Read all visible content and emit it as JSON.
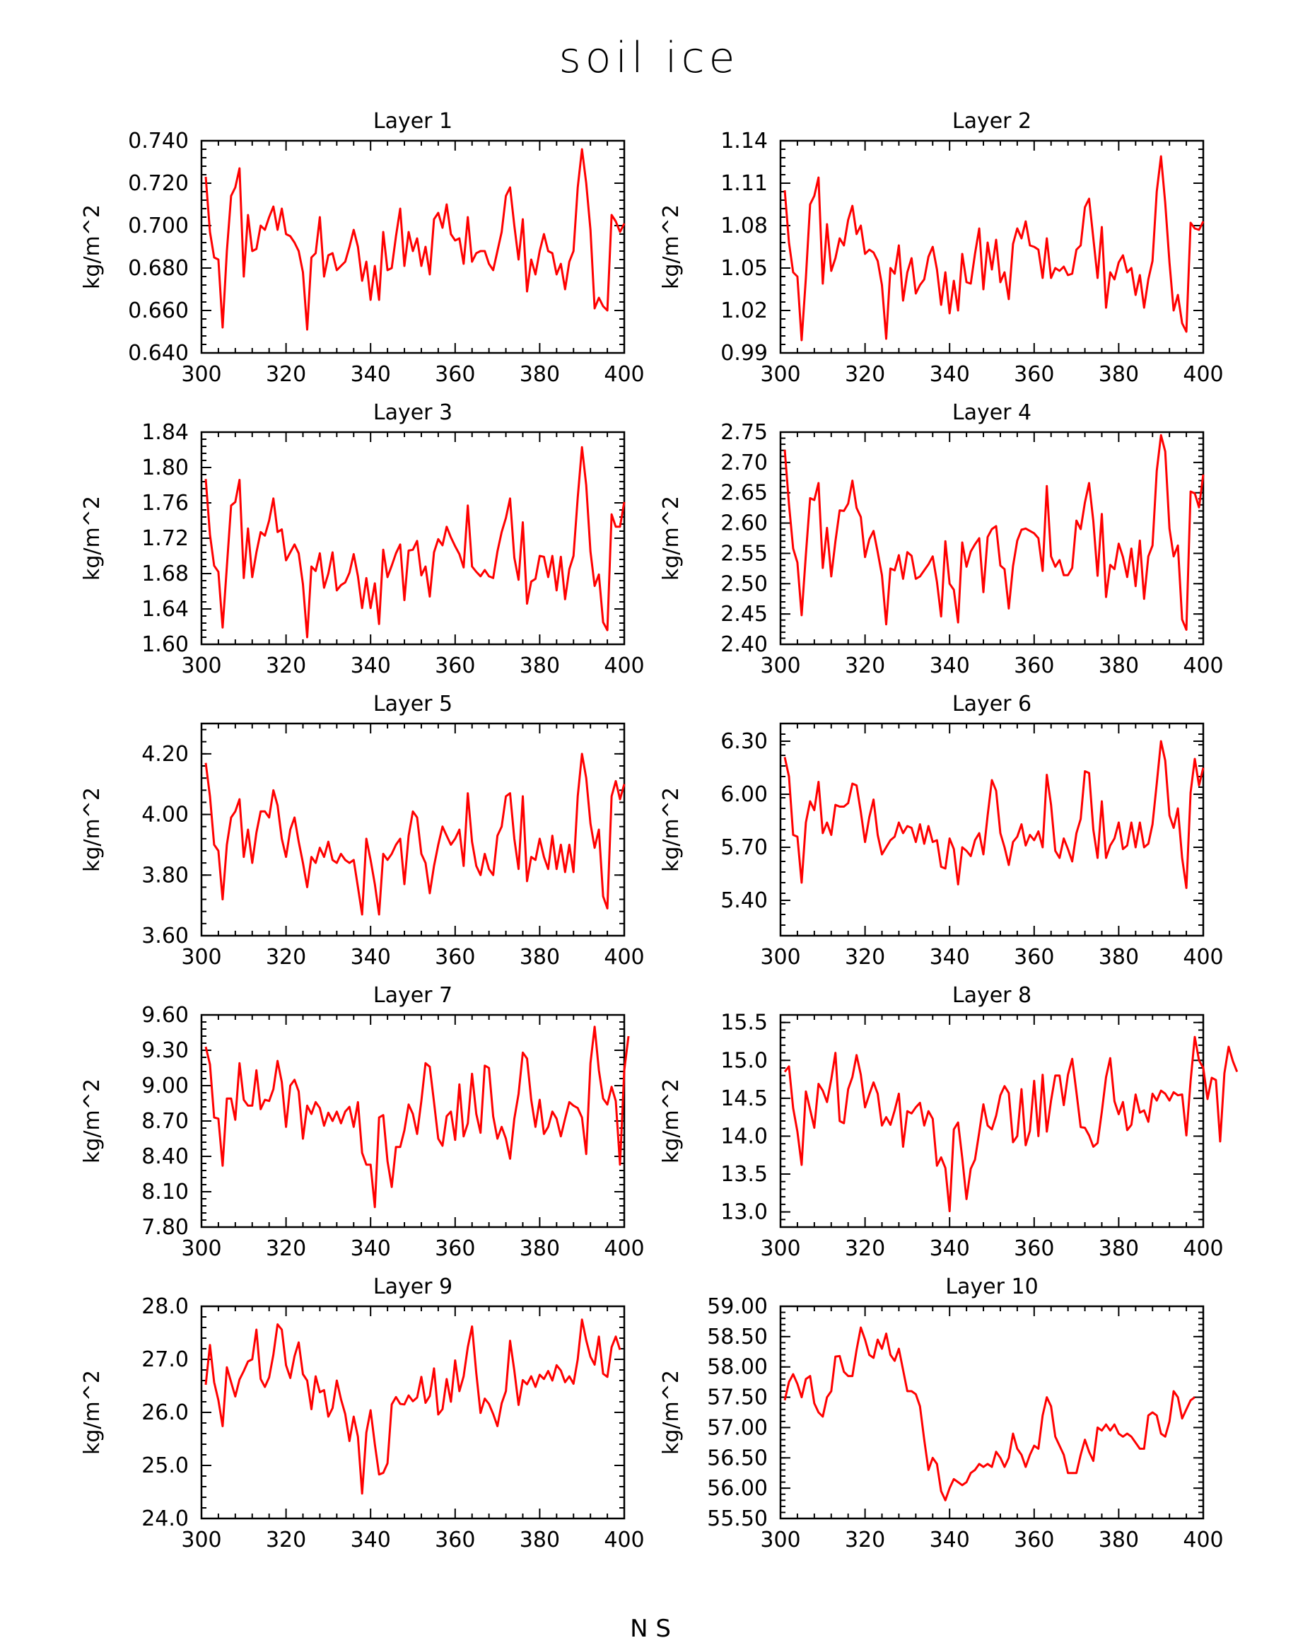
{
  "figure": {
    "title": "soil ice",
    "footer_text": "N  S",
    "line_color": "#ff0000",
    "axis_color": "#000000"
  },
  "chart_data": [
    {
      "type": "line",
      "title": "Layer 1",
      "xlabel": "",
      "ylabel": "kg/m^2",
      "xlim": [
        300,
        400
      ],
      "ylim": [
        0.64,
        0.74
      ],
      "xticks": [
        "300",
        "320",
        "340",
        "360",
        "380",
        "400"
      ],
      "yticks": [
        "0.640",
        "0.660",
        "0.680",
        "0.700",
        "0.720",
        "0.740"
      ],
      "x_start": 301,
      "x_step": 1,
      "values": [
        0.723,
        0.697,
        0.685,
        0.684,
        0.652,
        0.688,
        0.714,
        0.718,
        0.727,
        0.676,
        0.705,
        0.688,
        0.689,
        0.7,
        0.698,
        0.704,
        0.709,
        0.698,
        0.708,
        0.696,
        0.695,
        0.692,
        0.688,
        0.678,
        0.651,
        0.685,
        0.687,
        0.704,
        0.676,
        0.686,
        0.687,
        0.679,
        0.681,
        0.683,
        0.69,
        0.698,
        0.69,
        0.674,
        0.683,
        0.665,
        0.681,
        0.665,
        0.697,
        0.679,
        0.68,
        0.695,
        0.708,
        0.681,
        0.697,
        0.688,
        0.694,
        0.681,
        0.69,
        0.677,
        0.703,
        0.706,
        0.699,
        0.71,
        0.696,
        0.693,
        0.694,
        0.682,
        0.704,
        0.683,
        0.687,
        0.688,
        0.688,
        0.682,
        0.679,
        0.688,
        0.697,
        0.714,
        0.718,
        0.7,
        0.684,
        0.703,
        0.669,
        0.684,
        0.677,
        0.688,
        0.696,
        0.688,
        0.687,
        0.677,
        0.682,
        0.67,
        0.683,
        0.688,
        0.718,
        0.736,
        0.72,
        0.698,
        0.661,
        0.666,
        0.662,
        0.66,
        0.705,
        0.702,
        0.697,
        0.701
      ]
    },
    {
      "type": "line",
      "title": "Layer 2",
      "xlabel": "",
      "ylabel": "kg/m^2",
      "xlim": [
        300,
        400
      ],
      "ylim": [
        0.99,
        1.14
      ],
      "xticks": [
        "300",
        "320",
        "340",
        "360",
        "380",
        "400"
      ],
      "yticks": [
        "0.99",
        "1.02",
        "1.05",
        "1.08",
        "1.11",
        "1.14"
      ],
      "x_start": 301,
      "x_step": 1,
      "values": [
        1.105,
        1.068,
        1.047,
        1.044,
        0.999,
        1.043,
        1.095,
        1.101,
        1.114,
        1.039,
        1.081,
        1.048,
        1.057,
        1.071,
        1.066,
        1.084,
        1.094,
        1.074,
        1.08,
        1.06,
        1.063,
        1.061,
        1.055,
        1.038,
        1.0,
        1.05,
        1.046,
        1.066,
        1.027,
        1.047,
        1.057,
        1.032,
        1.038,
        1.042,
        1.058,
        1.065,
        1.049,
        1.024,
        1.047,
        1.018,
        1.041,
        1.02,
        1.06,
        1.04,
        1.039,
        1.06,
        1.078,
        1.035,
        1.068,
        1.049,
        1.07,
        1.04,
        1.047,
        1.028,
        1.067,
        1.078,
        1.071,
        1.083,
        1.066,
        1.065,
        1.063,
        1.043,
        1.071,
        1.043,
        1.05,
        1.048,
        1.051,
        1.045,
        1.046,
        1.063,
        1.066,
        1.093,
        1.099,
        1.071,
        1.043,
        1.079,
        1.022,
        1.047,
        1.042,
        1.054,
        1.059,
        1.047,
        1.05,
        1.031,
        1.045,
        1.022,
        1.042,
        1.055,
        1.104,
        1.129,
        1.096,
        1.054,
        1.02,
        1.031,
        1.011,
        1.005,
        1.082,
        1.078,
        1.077,
        1.083
      ]
    },
    {
      "type": "line",
      "title": "Layer 3",
      "xlabel": "",
      "ylabel": "kg/m^2",
      "xlim": [
        300,
        400
      ],
      "ylim": [
        1.6,
        1.84
      ],
      "xticks": [
        "300",
        "320",
        "340",
        "360",
        "380",
        "400"
      ],
      "yticks": [
        "1.60",
        "1.64",
        "1.68",
        "1.72",
        "1.76",
        "1.80",
        "1.84"
      ],
      "x_start": 301,
      "x_step": 1,
      "values": [
        1.787,
        1.724,
        1.689,
        1.682,
        1.619,
        1.688,
        1.757,
        1.761,
        1.786,
        1.675,
        1.731,
        1.676,
        1.704,
        1.727,
        1.723,
        1.74,
        1.765,
        1.727,
        1.73,
        1.695,
        1.704,
        1.713,
        1.703,
        1.668,
        1.608,
        1.688,
        1.683,
        1.703,
        1.664,
        1.68,
        1.704,
        1.661,
        1.667,
        1.67,
        1.681,
        1.702,
        1.677,
        1.641,
        1.675,
        1.641,
        1.669,
        1.623,
        1.707,
        1.676,
        1.689,
        1.703,
        1.713,
        1.65,
        1.706,
        1.707,
        1.717,
        1.678,
        1.688,
        1.654,
        1.704,
        1.719,
        1.712,
        1.733,
        1.721,
        1.711,
        1.702,
        1.687,
        1.757,
        1.688,
        1.682,
        1.677,
        1.684,
        1.677,
        1.675,
        1.705,
        1.727,
        1.743,
        1.765,
        1.698,
        1.673,
        1.738,
        1.646,
        1.671,
        1.674,
        1.7,
        1.699,
        1.676,
        1.7,
        1.661,
        1.699,
        1.651,
        1.685,
        1.7,
        1.766,
        1.823,
        1.78,
        1.705,
        1.666,
        1.679,
        1.625,
        1.616,
        1.747,
        1.733,
        1.733,
        1.761
      ]
    },
    {
      "type": "line",
      "title": "Layer 4",
      "xlabel": "",
      "ylabel": "kg/m^2",
      "xlim": [
        300,
        400
      ],
      "ylim": [
        2.4,
        2.75
      ],
      "xticks": [
        "300",
        "320",
        "340",
        "360",
        "380",
        "400"
      ],
      "yticks": [
        "2.40",
        "2.45",
        "2.50",
        "2.55",
        "2.60",
        "2.65",
        "2.70",
        "2.75"
      ],
      "x_start": 301,
      "x_step": 1,
      "values": [
        2.721,
        2.631,
        2.558,
        2.535,
        2.448,
        2.548,
        2.641,
        2.638,
        2.666,
        2.526,
        2.592,
        2.512,
        2.57,
        2.621,
        2.62,
        2.632,
        2.67,
        2.625,
        2.61,
        2.544,
        2.573,
        2.587,
        2.552,
        2.514,
        2.433,
        2.525,
        2.522,
        2.547,
        2.508,
        2.552,
        2.546,
        2.508,
        2.512,
        2.522,
        2.532,
        2.545,
        2.503,
        2.446,
        2.57,
        2.5,
        2.49,
        2.436,
        2.568,
        2.528,
        2.553,
        2.565,
        2.575,
        2.486,
        2.577,
        2.59,
        2.595,
        2.53,
        2.524,
        2.459,
        2.529,
        2.571,
        2.589,
        2.591,
        2.587,
        2.583,
        2.575,
        2.521,
        2.661,
        2.545,
        2.528,
        2.539,
        2.514,
        2.514,
        2.526,
        2.604,
        2.59,
        2.634,
        2.666,
        2.603,
        2.513,
        2.615,
        2.478,
        2.531,
        2.524,
        2.566,
        2.544,
        2.511,
        2.558,
        2.496,
        2.571,
        2.475,
        2.545,
        2.563,
        2.686,
        2.745,
        2.718,
        2.591,
        2.545,
        2.563,
        2.441,
        2.424,
        2.652,
        2.649,
        2.626,
        2.68
      ]
    },
    {
      "type": "line",
      "title": "Layer 5",
      "xlabel": "",
      "ylabel": "kg/m^2",
      "xlim": [
        300,
        400
      ],
      "ylim": [
        3.6,
        4.3
      ],
      "xticks": [
        "300",
        "320",
        "340",
        "360",
        "380",
        "400"
      ],
      "yticks": [
        "3.60",
        "3.80",
        "4.00",
        "4.20"
      ],
      "x_start": 301,
      "x_step": 1,
      "values": [
        4.17,
        4.06,
        3.9,
        3.88,
        3.72,
        3.9,
        3.99,
        4.01,
        4.05,
        3.86,
        3.95,
        3.84,
        3.94,
        4.01,
        4.01,
        3.99,
        4.08,
        4.03,
        3.92,
        3.86,
        3.95,
        3.99,
        3.91,
        3.84,
        3.76,
        3.86,
        3.84,
        3.89,
        3.86,
        3.91,
        3.85,
        3.84,
        3.87,
        3.85,
        3.84,
        3.85,
        3.76,
        3.67,
        3.92,
        3.85,
        3.77,
        3.67,
        3.87,
        3.85,
        3.87,
        3.9,
        3.92,
        3.77,
        3.93,
        4.01,
        3.99,
        3.87,
        3.84,
        3.74,
        3.83,
        3.9,
        3.96,
        3.93,
        3.9,
        3.92,
        3.95,
        3.83,
        4.07,
        3.91,
        3.83,
        3.8,
        3.87,
        3.82,
        3.8,
        3.93,
        3.96,
        4.06,
        4.07,
        3.92,
        3.82,
        4.06,
        3.78,
        3.86,
        3.85,
        3.92,
        3.86,
        3.82,
        3.93,
        3.82,
        3.9,
        3.81,
        3.9,
        3.81,
        4.06,
        4.2,
        4.12,
        3.97,
        3.89,
        3.95,
        3.73,
        3.69,
        4.06,
        4.11,
        4.05,
        4.1
      ]
    },
    {
      "type": "line",
      "title": "Layer 6",
      "xlabel": "",
      "ylabel": "kg/m^2",
      "xlim": [
        300,
        400
      ],
      "ylim": [
        5.2,
        6.4
      ],
      "xticks": [
        "300",
        "320",
        "340",
        "360",
        "380",
        "400"
      ],
      "yticks": [
        "5.40",
        "5.70",
        "6.00",
        "6.30"
      ],
      "x_start": 301,
      "x_step": 1,
      "values": [
        6.21,
        6.1,
        5.77,
        5.76,
        5.5,
        5.84,
        5.96,
        5.91,
        6.07,
        5.78,
        5.84,
        5.77,
        5.94,
        5.93,
        5.93,
        5.95,
        6.06,
        6.05,
        5.9,
        5.73,
        5.87,
        5.97,
        5.77,
        5.66,
        5.7,
        5.74,
        5.76,
        5.84,
        5.78,
        5.82,
        5.81,
        5.73,
        5.83,
        5.72,
        5.82,
        5.73,
        5.74,
        5.59,
        5.58,
        5.75,
        5.69,
        5.49,
        5.7,
        5.68,
        5.65,
        5.74,
        5.78,
        5.66,
        5.88,
        6.08,
        6.02,
        5.78,
        5.7,
        5.6,
        5.73,
        5.76,
        5.83,
        5.71,
        5.77,
        5.74,
        5.79,
        5.7,
        6.11,
        5.94,
        5.68,
        5.64,
        5.75,
        5.69,
        5.62,
        5.78,
        5.86,
        6.13,
        6.12,
        5.8,
        5.64,
        5.96,
        5.64,
        5.71,
        5.75,
        5.84,
        5.69,
        5.71,
        5.84,
        5.7,
        5.84,
        5.7,
        5.72,
        5.83,
        6.06,
        6.3,
        6.19,
        5.88,
        5.81,
        5.92,
        5.64,
        5.47,
        6.01,
        6.2,
        6.05,
        6.15
      ]
    },
    {
      "type": "line",
      "title": "Layer 7",
      "xlabel": "",
      "ylabel": "kg/m^2",
      "xlim": [
        300,
        400
      ],
      "ylim": [
        7.8,
        9.6
      ],
      "xticks": [
        "300",
        "320",
        "340",
        "360",
        "380",
        "400"
      ],
      "yticks": [
        "7.80",
        "8.10",
        "8.40",
        "8.70",
        "9.00",
        "9.30",
        "9.60"
      ],
      "x_start": 301,
      "x_step": 1,
      "values": [
        9.33,
        9.18,
        8.73,
        8.72,
        8.32,
        8.89,
        8.89,
        8.71,
        9.19,
        8.88,
        8.83,
        8.83,
        9.13,
        8.8,
        8.88,
        8.87,
        8.97,
        9.21,
        9.03,
        8.65,
        9.0,
        9.05,
        8.95,
        8.55,
        8.83,
        8.76,
        8.86,
        8.81,
        8.66,
        8.77,
        8.7,
        8.78,
        8.68,
        8.78,
        8.82,
        8.65,
        8.86,
        8.43,
        8.33,
        8.33,
        7.97,
        8.73,
        8.75,
        8.36,
        8.14,
        8.48,
        8.48,
        8.62,
        8.84,
        8.76,
        8.59,
        8.87,
        9.19,
        9.16,
        8.86,
        8.55,
        8.49,
        8.74,
        8.78,
        8.54,
        9.01,
        8.57,
        8.68,
        9.1,
        8.76,
        8.6,
        9.17,
        9.15,
        8.74,
        8.55,
        8.65,
        8.55,
        8.38,
        8.72,
        8.93,
        9.28,
        9.23,
        8.88,
        8.65,
        8.88,
        8.59,
        8.65,
        8.78,
        8.72,
        8.57,
        8.72,
        8.86,
        8.83,
        8.81,
        8.73,
        8.42,
        9.19,
        9.5,
        9.13,
        8.89,
        8.84,
        8.99,
        8.87,
        8.33,
        9.13,
        9.42
      ]
    },
    {
      "type": "line",
      "title": "Layer 8",
      "xlabel": "",
      "ylabel": "kg/m^2",
      "xlim": [
        300,
        400
      ],
      "ylim": [
        12.8,
        15.6
      ],
      "xticks": [
        "300",
        "320",
        "340",
        "360",
        "380",
        "400"
      ],
      "yticks": [
        "13.0",
        "13.5",
        "14.0",
        "14.5",
        "15.0",
        "15.5"
      ],
      "x_start": 301,
      "x_step": 1,
      "values": [
        14.85,
        14.92,
        14.37,
        14.06,
        13.62,
        14.59,
        14.35,
        14.11,
        14.69,
        14.6,
        14.45,
        14.75,
        15.1,
        14.2,
        14.17,
        14.62,
        14.78,
        15.07,
        14.81,
        14.38,
        14.55,
        14.71,
        14.56,
        14.14,
        14.25,
        14.15,
        14.34,
        14.56,
        13.86,
        14.33,
        14.3,
        14.38,
        14.44,
        14.14,
        14.33,
        14.23,
        13.61,
        13.72,
        13.58,
        13.01,
        14.09,
        14.18,
        13.71,
        13.17,
        13.57,
        13.69,
        14.05,
        14.42,
        14.14,
        14.09,
        14.27,
        14.54,
        14.66,
        14.57,
        13.92,
        14.0,
        14.62,
        13.88,
        14.07,
        14.73,
        14.0,
        14.81,
        14.06,
        14.47,
        14.8,
        14.8,
        14.41,
        14.81,
        15.02,
        14.58,
        14.12,
        14.11,
        14.01,
        13.86,
        13.91,
        14.32,
        14.78,
        15.03,
        14.46,
        14.29,
        14.45,
        14.08,
        14.15,
        14.55,
        14.31,
        14.34,
        14.19,
        14.56,
        14.47,
        14.6,
        14.56,
        14.47,
        14.58,
        14.54,
        14.55,
        14.01,
        14.73,
        15.31,
        15.0,
        14.9,
        14.49,
        14.77,
        14.74,
        13.93,
        14.83,
        15.18,
        14.99,
        14.85
      ]
    },
    {
      "type": "line",
      "title": "Layer 9",
      "xlabel": "",
      "ylabel": "kg/m^2",
      "xlim": [
        300,
        400
      ],
      "ylim": [
        24.0,
        28.0
      ],
      "xticks": [
        "300",
        "320",
        "340",
        "360",
        "380",
        "400"
      ],
      "yticks": [
        "24.0",
        "25.0",
        "26.0",
        "27.0",
        "28.0"
      ],
      "x_start": 301,
      "x_step": 1,
      "values": [
        26.52,
        27.27,
        26.57,
        26.23,
        25.74,
        26.85,
        26.57,
        26.3,
        26.62,
        26.78,
        26.96,
        27.0,
        27.56,
        26.63,
        26.48,
        26.66,
        27.09,
        27.66,
        27.56,
        26.89,
        26.65,
        27.06,
        27.32,
        26.72,
        26.6,
        26.06,
        26.68,
        26.38,
        26.42,
        25.92,
        26.08,
        26.6,
        26.25,
        25.97,
        25.46,
        25.92,
        25.54,
        24.47,
        25.62,
        26.04,
        25.4,
        24.83,
        24.86,
        25.04,
        26.15,
        26.29,
        26.16,
        26.15,
        26.32,
        26.21,
        26.28,
        26.67,
        26.18,
        26.31,
        26.83,
        25.96,
        26.06,
        26.63,
        26.2,
        26.98,
        26.4,
        26.68,
        27.23,
        27.62,
        26.74,
        25.99,
        26.26,
        26.16,
        25.97,
        25.74,
        26.17,
        26.4,
        27.35,
        26.79,
        26.14,
        26.61,
        26.53,
        26.68,
        26.48,
        26.71,
        26.63,
        26.78,
        26.6,
        26.89,
        26.79,
        26.57,
        26.68,
        26.54,
        27.0,
        27.75,
        27.36,
        27.05,
        26.9,
        27.43,
        26.73,
        26.67,
        27.23,
        27.43,
        27.18
      ]
    },
    {
      "type": "line",
      "title": "Layer 10",
      "xlabel": "",
      "ylabel": "kg/m^2",
      "xlim": [
        300,
        400
      ],
      "ylim": [
        55.5,
        59.0
      ],
      "xticks": [
        "300",
        "320",
        "340",
        "360",
        "380",
        "400"
      ],
      "yticks": [
        "55.50",
        "56.00",
        "56.50",
        "57.00",
        "57.50",
        "58.00",
        "58.50",
        "59.00"
      ],
      "x_start": 301,
      "x_step": 1,
      "values": [
        57.45,
        57.75,
        57.88,
        57.72,
        57.5,
        57.8,
        57.85,
        57.4,
        57.25,
        57.18,
        57.5,
        57.6,
        58.17,
        58.18,
        57.92,
        57.85,
        57.85,
        58.28,
        58.65,
        58.45,
        58.2,
        58.15,
        58.45,
        58.3,
        58.55,
        58.2,
        58.1,
        58.3,
        57.95,
        57.6,
        57.6,
        57.55,
        57.35,
        56.8,
        56.3,
        56.5,
        56.4,
        55.95,
        55.8,
        56.0,
        56.15,
        56.1,
        56.05,
        56.1,
        56.25,
        56.3,
        56.4,
        56.35,
        56.4,
        56.35,
        56.6,
        56.5,
        56.35,
        56.5,
        56.9,
        56.65,
        56.55,
        56.35,
        56.55,
        56.7,
        56.65,
        57.2,
        57.5,
        57.35,
        56.85,
        56.7,
        56.55,
        56.25,
        56.25,
        56.25,
        56.55,
        56.8,
        56.6,
        56.45,
        57.0,
        56.95,
        57.05,
        56.95,
        57.05,
        56.9,
        56.85,
        56.9,
        56.85,
        56.75,
        56.65,
        56.65,
        57.2,
        57.25,
        57.2,
        56.9,
        56.85,
        57.1,
        57.6,
        57.5,
        57.15,
        57.3,
        57.45,
        57.5
      ]
    }
  ]
}
